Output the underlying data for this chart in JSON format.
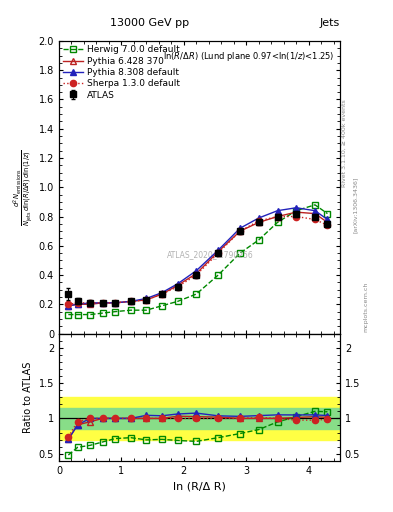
{
  "title_center": "13000 GeV pp",
  "title_right": "Jets",
  "panel_title": "ln(R/Δ R) (Lund plane 0.97<ln(1/z)<1.25)",
  "watermark": "ATLAS_2020_I1790256",
  "right_label1": "Rivet 3.1.10, ≥ 400k events",
  "right_label2": "[arXiv:1306.3436]",
  "right_label3": "mcplots.cern.ch",
  "xlabel": "ln (R/Δ R)",
  "ylabel_ratio": "Ratio to ATLAS",
  "xlim": [
    0,
    4.5
  ],
  "ylim_main": [
    0,
    2.0
  ],
  "ylim_ratio": [
    0.4,
    2.2
  ],
  "yticks_main": [
    0,
    0.2,
    0.4,
    0.6,
    0.8,
    1.0,
    1.2,
    1.4,
    1.6,
    1.8,
    2.0
  ],
  "yticks_ratio": [
    0.5,
    1.0,
    1.5,
    2.0
  ],
  "x_atlas": [
    0.15,
    0.3,
    0.5,
    0.7,
    0.9,
    1.15,
    1.4,
    1.65,
    1.9,
    2.2,
    2.55,
    2.9,
    3.2,
    3.5,
    3.8,
    4.1,
    4.3
  ],
  "y_atlas": [
    0.27,
    0.22,
    0.21,
    0.21,
    0.21,
    0.22,
    0.23,
    0.27,
    0.32,
    0.4,
    0.55,
    0.7,
    0.76,
    0.8,
    0.82,
    0.8,
    0.75
  ],
  "yerr_atlas_lo": [
    0.04,
    0.02,
    0.02,
    0.01,
    0.01,
    0.01,
    0.01,
    0.01,
    0.02,
    0.02,
    0.02,
    0.02,
    0.02,
    0.02,
    0.02,
    0.02,
    0.02
  ],
  "yerr_atlas_hi": [
    0.04,
    0.02,
    0.02,
    0.01,
    0.01,
    0.01,
    0.01,
    0.01,
    0.02,
    0.02,
    0.02,
    0.02,
    0.02,
    0.02,
    0.02,
    0.02,
    0.02
  ],
  "x_herwig": [
    0.15,
    0.3,
    0.5,
    0.7,
    0.9,
    1.15,
    1.4,
    1.65,
    1.9,
    2.2,
    2.55,
    2.9,
    3.2,
    3.5,
    3.8,
    4.1,
    4.3
  ],
  "y_herwig": [
    0.13,
    0.13,
    0.13,
    0.14,
    0.15,
    0.16,
    0.16,
    0.19,
    0.22,
    0.27,
    0.4,
    0.55,
    0.64,
    0.76,
    0.84,
    0.88,
    0.82
  ],
  "x_pythia6": [
    0.15,
    0.3,
    0.5,
    0.7,
    0.9,
    1.15,
    1.4,
    1.65,
    1.9,
    2.2,
    2.55,
    2.9,
    3.2,
    3.5,
    3.8,
    4.1,
    4.3
  ],
  "y_pythia6": [
    0.19,
    0.2,
    0.2,
    0.21,
    0.21,
    0.22,
    0.23,
    0.27,
    0.33,
    0.41,
    0.56,
    0.7,
    0.76,
    0.8,
    0.83,
    0.82,
    0.76
  ],
  "x_pythia8": [
    0.15,
    0.3,
    0.5,
    0.7,
    0.9,
    1.15,
    1.4,
    1.65,
    1.9,
    2.2,
    2.55,
    2.9,
    3.2,
    3.5,
    3.8,
    4.1,
    4.3
  ],
  "y_pythia8": [
    0.19,
    0.2,
    0.21,
    0.21,
    0.21,
    0.22,
    0.24,
    0.28,
    0.34,
    0.43,
    0.57,
    0.72,
    0.79,
    0.84,
    0.86,
    0.84,
    0.78
  ],
  "x_sherpa": [
    0.15,
    0.3,
    0.5,
    0.7,
    0.9,
    1.15,
    1.4,
    1.65,
    1.9,
    2.2,
    2.55,
    2.9,
    3.2,
    3.5,
    3.8,
    4.1,
    4.3
  ],
  "y_sherpa": [
    0.2,
    0.21,
    0.21,
    0.21,
    0.21,
    0.22,
    0.23,
    0.27,
    0.32,
    0.4,
    0.55,
    0.7,
    0.77,
    0.8,
    0.8,
    0.78,
    0.74
  ],
  "band_green_lo": 0.85,
  "band_green_hi": 1.15,
  "band_yellow_lo": 0.7,
  "band_yellow_hi": 1.3,
  "color_atlas": "#000000",
  "color_herwig": "#008800",
  "color_pythia6": "#bb2222",
  "color_pythia8": "#2222bb",
  "color_sherpa": "#cc2222",
  "legend_entries": [
    "ATLAS",
    "Herwig 7.0.0 default",
    "Pythia 6.428 370",
    "Pythia 8.308 default",
    "Sherpa 1.3.0 default"
  ]
}
